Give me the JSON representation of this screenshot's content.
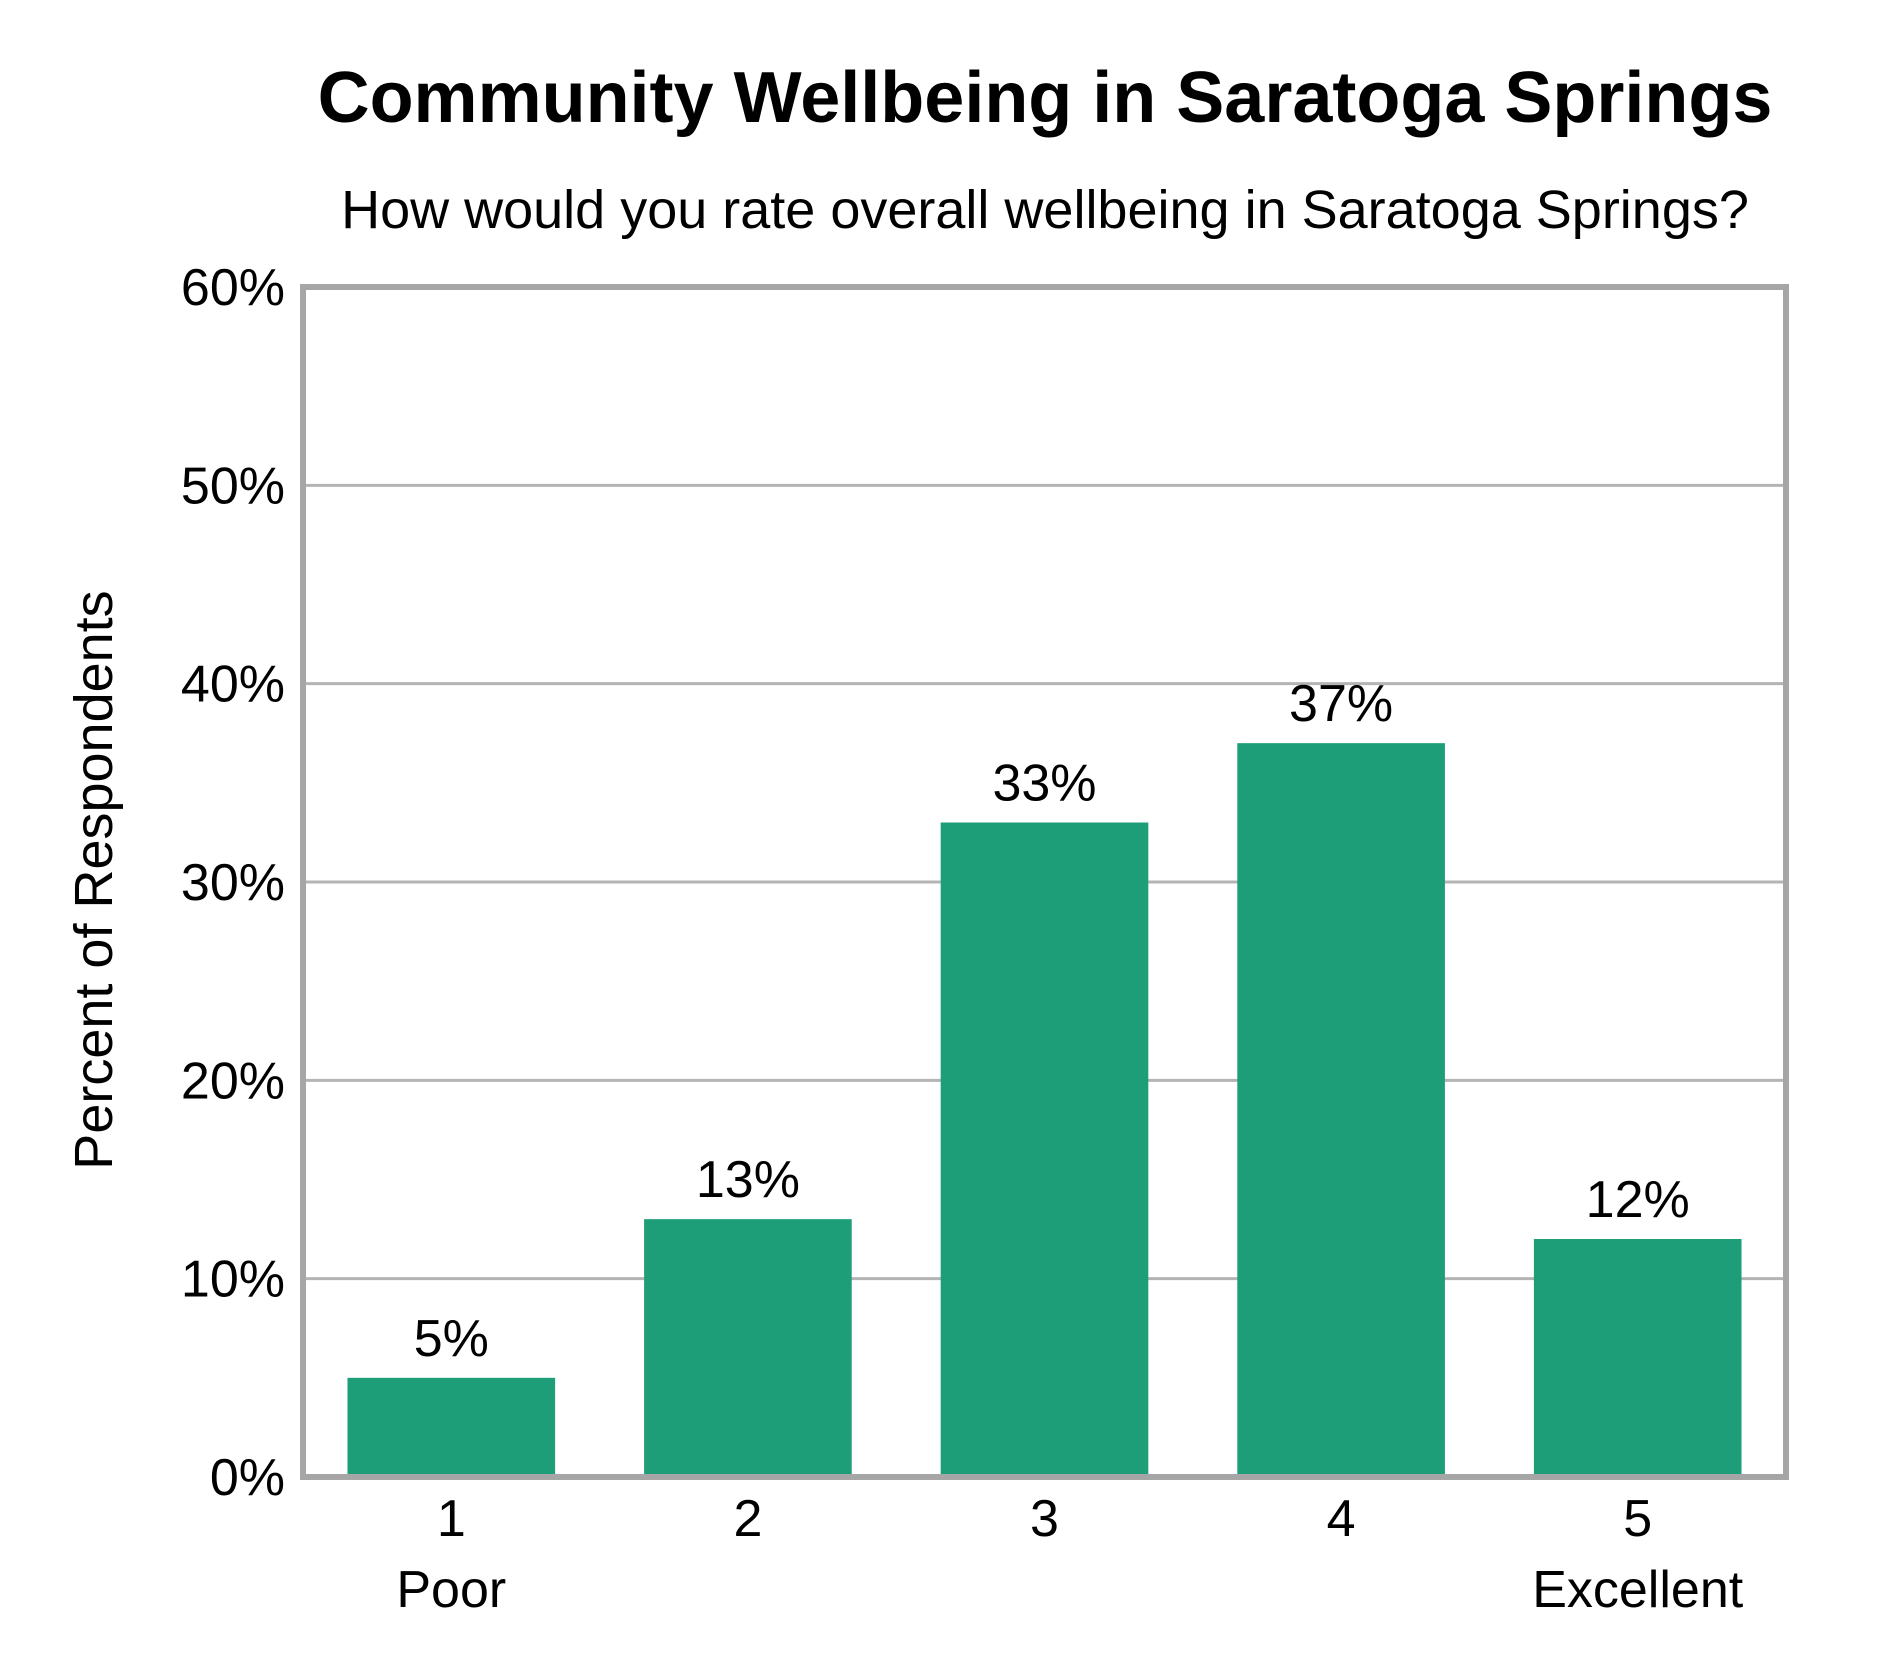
{
  "chart_data": {
    "type": "bar",
    "title": "Community Wellbeing in Saratoga Springs",
    "subtitle": "How would you rate overall wellbeing in Saratoga Springs?",
    "ylabel": "Percent of Respondents",
    "xlabel": "",
    "categories": [
      "1",
      "2",
      "3",
      "4",
      "5"
    ],
    "category_sublabels": [
      "Poor",
      "",
      "",
      "",
      "Excellent"
    ],
    "values": [
      5,
      13,
      33,
      37,
      12
    ],
    "data_labels": [
      "5%",
      "13%",
      "33%",
      "37%",
      "12%"
    ],
    "ylim": [
      0,
      60
    ],
    "yticks": [
      0,
      10,
      20,
      30,
      40,
      50,
      60
    ],
    "ytick_labels": [
      "0%",
      "10%",
      "20%",
      "30%",
      "40%",
      "50%",
      "60%"
    ],
    "grid": true,
    "colors": {
      "bar": "#1e9e78",
      "grid": "#b4b4b4",
      "frame": "#a6a6a6"
    }
  }
}
